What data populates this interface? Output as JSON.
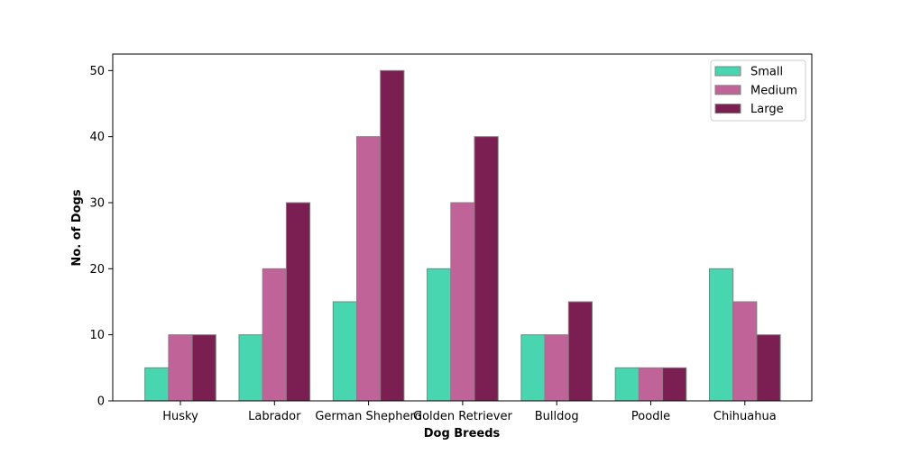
{
  "chart_data": {
    "type": "bar",
    "xlabel": "Dog Breeds",
    "ylabel": "No. of Dogs",
    "categories": [
      "Husky",
      "Labrador",
      "German Shepherd",
      "Golden Retriever",
      "Bulldog",
      "Poodle",
      "Chihuahua"
    ],
    "series": [
      {
        "name": "Small",
        "color": "#48D6B0",
        "values": [
          5,
          10,
          15,
          20,
          10,
          5,
          20
        ]
      },
      {
        "name": "Medium",
        "color": "#C06398",
        "values": [
          10,
          20,
          40,
          30,
          10,
          5,
          15
        ]
      },
      {
        "name": "Large",
        "color": "#7B1F52",
        "values": [
          10,
          30,
          50,
          40,
          15,
          5,
          10
        ]
      }
    ],
    "ylim": [
      0,
      52.5
    ],
    "yticks": [
      0,
      10,
      20,
      30,
      40,
      50
    ],
    "grid": false,
    "legend_position": "top-right",
    "bar_edge_color": "#808080"
  }
}
